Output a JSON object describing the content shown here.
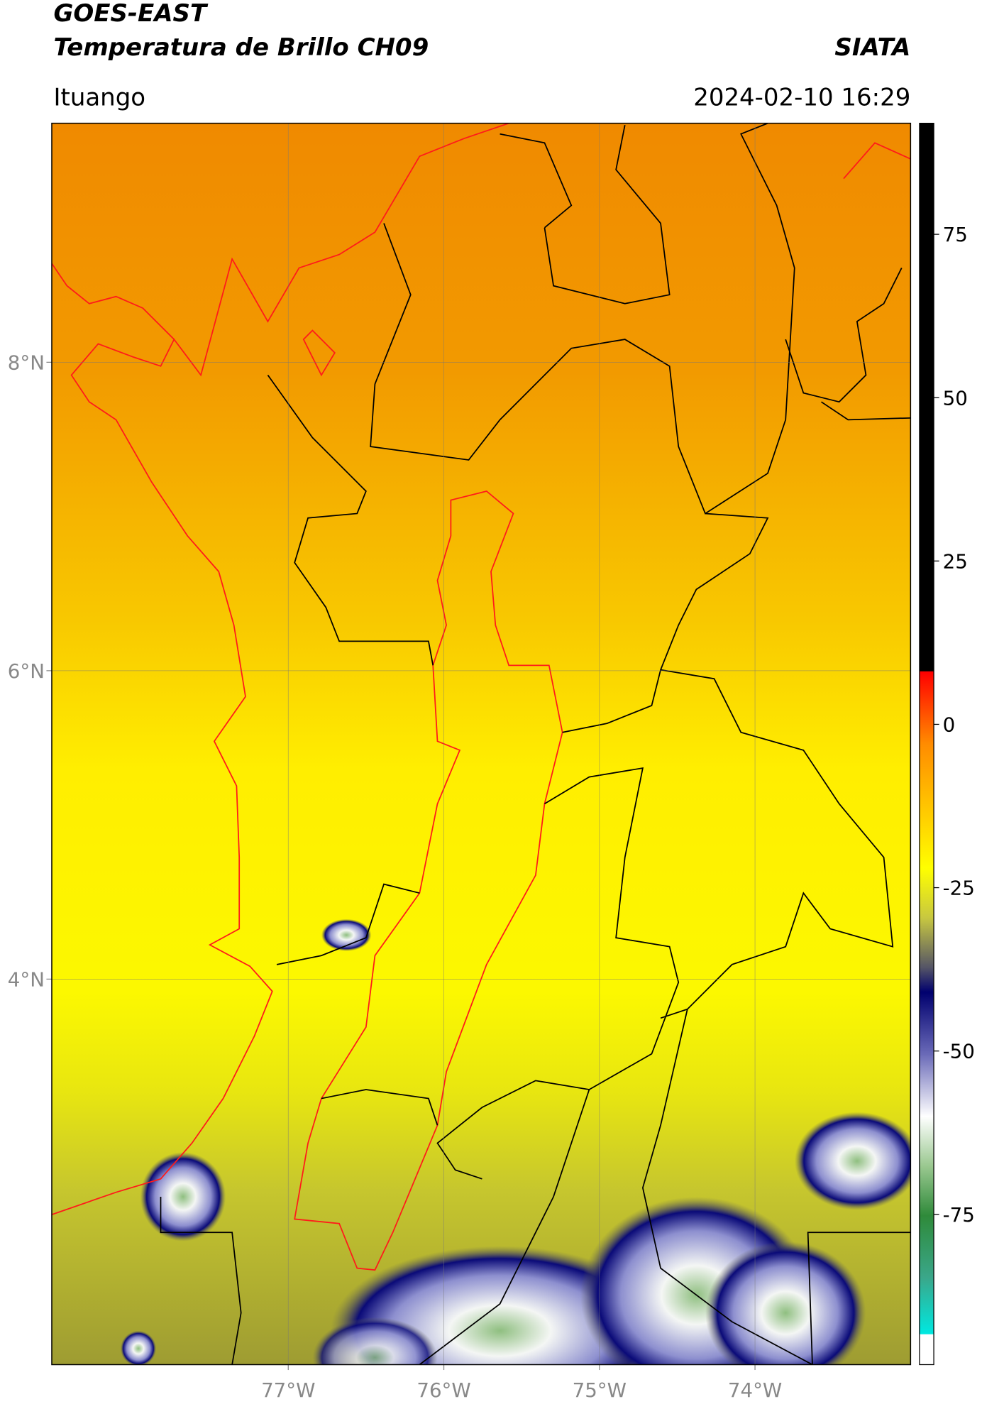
{
  "header": {
    "title": "GOES-EAST",
    "subtitle": "Temperatura de Brillo CH09",
    "organization": "SIATA",
    "location": "Ituango",
    "datetime": "2024-02-10 16:29"
  },
  "map": {
    "lonlim": [
      -78.52,
      -73.0
    ],
    "latlim": [
      1.5,
      9.55
    ],
    "lonticks": [
      {
        "value": -77,
        "label": "77°W"
      },
      {
        "value": -76,
        "label": "76°W"
      },
      {
        "value": -75,
        "label": "75°W"
      },
      {
        "value": -74,
        "label": "74°W"
      }
    ],
    "latticks": [
      {
        "value": 4,
        "label": "4°N"
      },
      {
        "value": 6,
        "label": "6°N"
      },
      {
        "value": 8,
        "label": "8°N"
      }
    ],
    "grid": true
  },
  "colorbar": {
    "lim": [
      -98,
      92
    ],
    "ticks": [
      -75,
      -50,
      -25,
      0,
      25,
      50,
      75
    ]
  }
}
